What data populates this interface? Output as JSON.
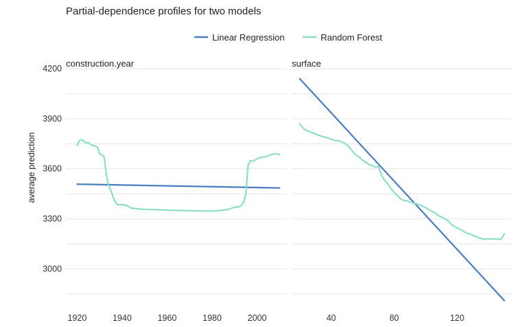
{
  "chart_data": {
    "type": "line",
    "title": "Partial-dependence profiles for two models",
    "ylabel": "average prediction",
    "ylim": [
      2800,
      4200
    ],
    "yticks": [
      3000,
      3300,
      3600,
      3900,
      4200
    ],
    "legend_position": "top",
    "grid": true,
    "series_styles": [
      {
        "name": "Linear Regression",
        "color": "#4a7cc0"
      },
      {
        "name": "Random Forest",
        "color": "#8ddfc3"
      }
    ],
    "panels": [
      {
        "label": "construction.year",
        "xlim": [
          1915,
          2013
        ],
        "xticks": [
          1920,
          1940,
          1960,
          1980,
          2000
        ],
        "series": [
          {
            "name": "Linear Regression",
            "x": [
              1920,
              2010
            ],
            "y": [
              3508,
              3485
            ]
          },
          {
            "name": "Random Forest",
            "x": [
              1920,
              1921,
              1922,
              1923,
              1924,
              1925,
              1926,
              1927,
              1928,
              1929,
              1930,
              1931,
              1932,
              1933,
              1934,
              1935,
              1936,
              1937,
              1938,
              1940,
              1942,
              1944,
              1946,
              1948,
              1950,
              1955,
              1960,
              1965,
              1970,
              1975,
              1980,
              1985,
              1988,
              1990,
              1992,
              1993,
              1994,
              1995,
              1996,
              1997,
              1998,
              2000,
              2002,
              2004,
              2006,
              2008,
              2010
            ],
            "y": [
              3740,
              3770,
              3775,
              3765,
              3755,
              3758,
              3745,
              3740,
              3735,
              3730,
              3690,
              3685,
              3670,
              3560,
              3500,
              3470,
              3430,
              3400,
              3385,
              3385,
              3380,
              3365,
              3362,
              3358,
              3357,
              3355,
              3352,
              3350,
              3349,
              3347,
              3347,
              3352,
              3360,
              3370,
              3372,
              3380,
              3400,
              3450,
              3620,
              3650,
              3645,
              3660,
              3670,
              3672,
              3685,
              3690,
              3685
            ]
          }
        ]
      },
      {
        "label": "surface",
        "xlim": [
          15,
          155
        ],
        "xticks": [
          40,
          80,
          120
        ],
        "series": [
          {
            "name": "Linear Regression",
            "x": [
              20,
              150
            ],
            "y": [
              4140,
              2810
            ]
          },
          {
            "name": "Random Forest",
            "x": [
              20,
              22,
              24,
              26,
              28,
              30,
              32,
              34,
              36,
              38,
              40,
              42,
              44,
              46,
              48,
              50,
              52,
              54,
              56,
              58,
              60,
              62,
              64,
              66,
              68,
              70,
              72,
              74,
              76,
              78,
              80,
              82,
              84,
              86,
              88,
              90,
              92,
              94,
              96,
              98,
              100,
              102,
              104,
              106,
              108,
              110,
              112,
              114,
              116,
              118,
              120,
              122,
              124,
              126,
              128,
              130,
              132,
              134,
              136,
              138,
              140,
              142,
              144,
              146,
              148,
              150
            ],
            "y": [
              3870,
              3845,
              3830,
              3825,
              3815,
              3810,
              3800,
              3795,
              3790,
              3785,
              3778,
              3770,
              3768,
              3765,
              3755,
              3745,
              3725,
              3700,
              3680,
              3670,
              3650,
              3640,
              3625,
              3620,
              3610,
              3615,
              3560,
              3530,
              3510,
              3480,
              3460,
              3440,
              3420,
              3410,
              3408,
              3400,
              3395,
              3390,
              3385,
              3375,
              3368,
              3355,
              3345,
              3335,
              3320,
              3312,
              3300,
              3290,
              3270,
              3255,
              3245,
              3238,
              3225,
              3215,
              3210,
              3200,
              3195,
              3185,
              3180,
              3178,
              3180,
              3178,
              3180,
              3178,
              3180,
              3210
            ]
          }
        ]
      }
    ]
  }
}
